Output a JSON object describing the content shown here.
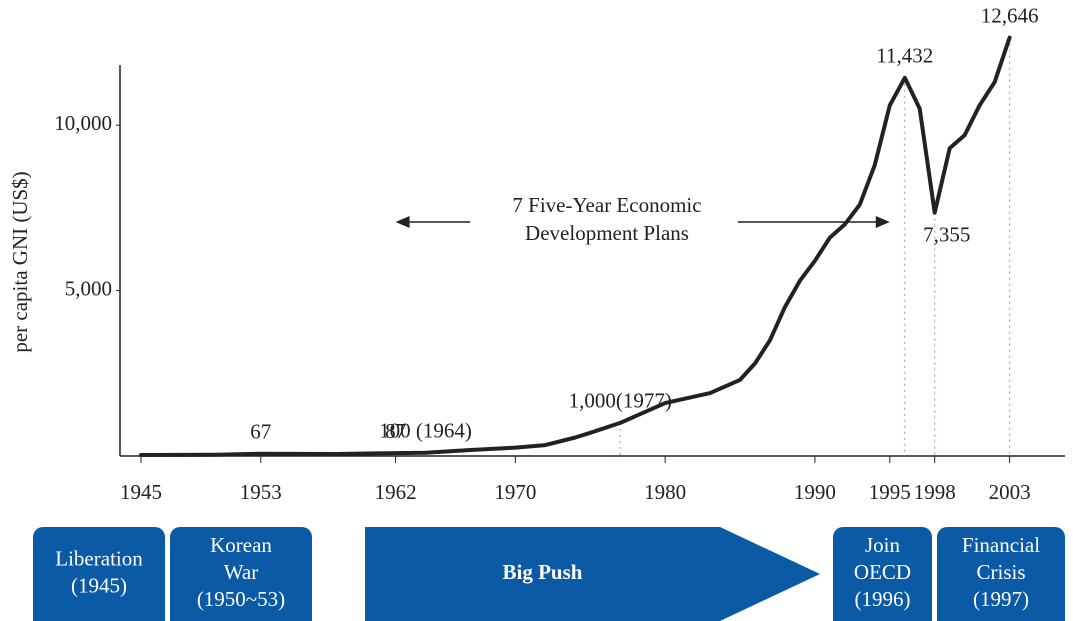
{
  "chart_data": {
    "type": "line",
    "y_label": "per capita GNI (US$)",
    "x": [
      1945,
      1950,
      1953,
      1958,
      1962,
      1964,
      1967,
      1970,
      1972,
      1974,
      1975,
      1977,
      1980,
      1983,
      1985,
      1986,
      1987,
      1988,
      1989,
      1990,
      1991,
      1992,
      1993,
      1994,
      1995,
      1996,
      1997,
      1998,
      1999,
      2000,
      2001,
      2002,
      2003
    ],
    "series": [
      {
        "color": "#222222",
        "values": [
          30,
          40,
          67,
          60,
          87,
          100,
          180,
          255,
          330,
          560,
          700,
          1000,
          1600,
          1900,
          2300,
          2800,
          3500,
          4500,
          5300,
          5900,
          6600,
          7000,
          7600,
          8800,
          10600,
          11432,
          10500,
          7355,
          9300,
          9700,
          10600,
          11300,
          12646
        ],
        "value_labels": [
          null,
          null,
          "67",
          null,
          "87",
          "100 (1964)",
          null,
          null,
          null,
          null,
          null,
          "1,000(1977)",
          null,
          null,
          null,
          null,
          null,
          null,
          null,
          null,
          null,
          null,
          null,
          null,
          null,
          "11,432",
          null,
          "7,355",
          null,
          null,
          null,
          null,
          "12,646"
        ]
      }
    ],
    "xlim": [
      1943.6,
      2006.7
    ],
    "xticks": [
      1945,
      1953,
      1962,
      1970,
      1980,
      1990,
      1995,
      1998,
      2003
    ],
    "ylim": [
      0,
      12000
    ],
    "yticks": [
      {
        "value": 5000,
        "label": "5,000"
      },
      {
        "value": 10000,
        "label": "10,000"
      }
    ],
    "annotation": {
      "text": [
        "7 Five-Year Economic",
        "Development Plans"
      ]
    },
    "periods": [
      {
        "text": [
          "Liberation",
          "(1945)"
        ]
      },
      {
        "text": [
          "Korean",
          "War",
          "(1950~53)"
        ]
      },
      {
        "text": [
          "Big Push"
        ]
      },
      {
        "text": [
          "Join",
          "OECD",
          "(1996)"
        ]
      },
      {
        "text": [
          "Financial",
          "Crisis",
          "(1997)"
        ]
      }
    ],
    "band_color": "#0b5aa6"
  }
}
